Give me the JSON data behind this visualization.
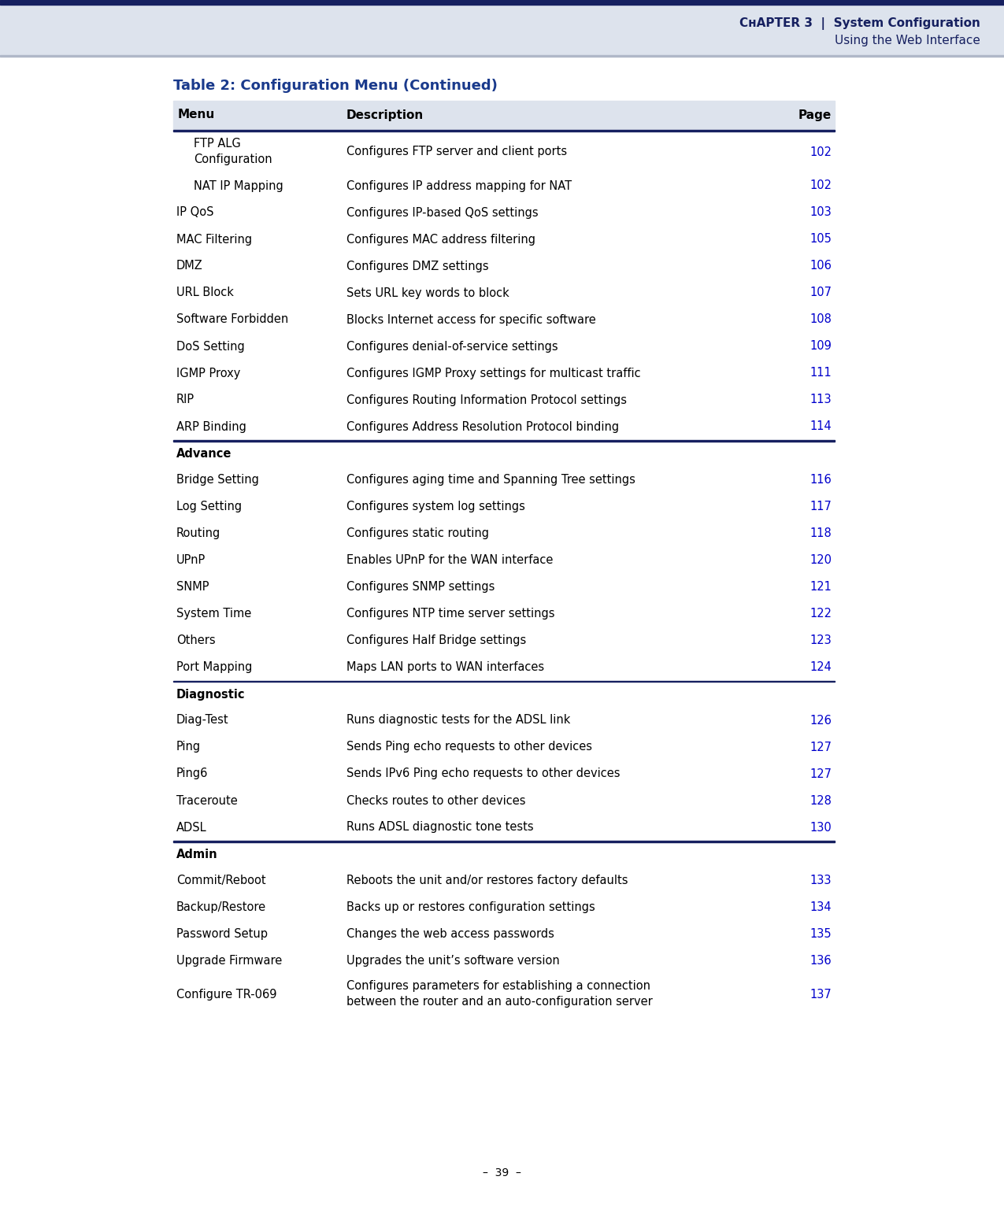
{
  "page_bg": "#ffffff",
  "header_bg": "#dde3ed",
  "header_top_bar_color": "#162060",
  "header_text_color": "#162060",
  "table_title": "Table 2: Configuration Menu (Continued)",
  "table_title_color": "#1a3a8c",
  "col_header_bg": "#dde3ed",
  "col_header_color": "#000000",
  "separator_color": "#162060",
  "page_number": "–  39  –",
  "page_num_color": "#000000",
  "link_color": "#0000cc",
  "rows": [
    {
      "menu": "FTP ALG\nConfiguration",
      "description": "Configures FTP server and client ports",
      "page": "102",
      "indent": true,
      "bold": false,
      "section_header": false,
      "separator_before": false,
      "two_line": true
    },
    {
      "menu": "NAT IP Mapping",
      "description": "Configures IP address mapping for NAT",
      "page": "102",
      "indent": true,
      "bold": false,
      "section_header": false,
      "separator_before": false,
      "two_line": false
    },
    {
      "menu": "IP QoS",
      "description": "Configures IP-based QoS settings",
      "page": "103",
      "indent": false,
      "bold": false,
      "section_header": false,
      "separator_before": false,
      "two_line": false
    },
    {
      "menu": "MAC Filtering",
      "description": "Configures MAC address filtering",
      "page": "105",
      "indent": false,
      "bold": false,
      "section_header": false,
      "separator_before": false,
      "two_line": false
    },
    {
      "menu": "DMZ",
      "description": "Configures DMZ settings",
      "page": "106",
      "indent": false,
      "bold": false,
      "section_header": false,
      "separator_before": false,
      "two_line": false
    },
    {
      "menu": "URL Block",
      "description": "Sets URL key words to block",
      "page": "107",
      "indent": false,
      "bold": false,
      "section_header": false,
      "separator_before": false,
      "two_line": false
    },
    {
      "menu": "Software Forbidden",
      "description": "Blocks Internet access for specific software",
      "page": "108",
      "indent": false,
      "bold": false,
      "section_header": false,
      "separator_before": false,
      "two_line": false
    },
    {
      "menu": "DoS Setting",
      "description": "Configures denial-of-service settings",
      "page": "109",
      "indent": false,
      "bold": false,
      "section_header": false,
      "separator_before": false,
      "two_line": false
    },
    {
      "menu": "IGMP Proxy",
      "description": "Configures IGMP Proxy settings for multicast traffic",
      "page": "111",
      "indent": false,
      "bold": false,
      "section_header": false,
      "separator_before": false,
      "two_line": false
    },
    {
      "menu": "RIP",
      "description": "Configures Routing Information Protocol settings",
      "page": "113",
      "indent": false,
      "bold": false,
      "section_header": false,
      "separator_before": false,
      "two_line": false
    },
    {
      "menu": "ARP Binding",
      "description": "Configures Address Resolution Protocol binding",
      "page": "114",
      "indent": false,
      "bold": false,
      "section_header": false,
      "separator_before": false,
      "two_line": false
    },
    {
      "menu": "Advance",
      "description": "",
      "page": "",
      "indent": false,
      "bold": true,
      "section_header": true,
      "separator_before": true,
      "two_line": false
    },
    {
      "menu": "Bridge Setting",
      "description": "Configures aging time and Spanning Tree settings",
      "page": "116",
      "indent": false,
      "bold": false,
      "section_header": false,
      "separator_before": false,
      "two_line": false
    },
    {
      "menu": "Log Setting",
      "description": "Configures system log settings",
      "page": "117",
      "indent": false,
      "bold": false,
      "section_header": false,
      "separator_before": false,
      "two_line": false
    },
    {
      "menu": "Routing",
      "description": "Configures static routing",
      "page": "118",
      "indent": false,
      "bold": false,
      "section_header": false,
      "separator_before": false,
      "two_line": false
    },
    {
      "menu": "UPnP",
      "description": "Enables UPnP for the WAN interface",
      "page": "120",
      "indent": false,
      "bold": false,
      "section_header": false,
      "separator_before": false,
      "two_line": false
    },
    {
      "menu": "SNMP",
      "description": "Configures SNMP settings",
      "page": "121",
      "indent": false,
      "bold": false,
      "section_header": false,
      "separator_before": false,
      "two_line": false
    },
    {
      "menu": "System Time",
      "description": "Configures NTP time server settings",
      "page": "122",
      "indent": false,
      "bold": false,
      "section_header": false,
      "separator_before": false,
      "two_line": false
    },
    {
      "menu": "Others",
      "description": "Configures Half Bridge settings",
      "page": "123",
      "indent": false,
      "bold": false,
      "section_header": false,
      "separator_before": false,
      "two_line": false
    },
    {
      "menu": "Port Mapping",
      "description": "Maps LAN ports to WAN interfaces",
      "page": "124",
      "indent": false,
      "bold": false,
      "section_header": false,
      "separator_before": false,
      "two_line": false
    },
    {
      "menu": "Diagnostic",
      "description": "",
      "page": "",
      "indent": false,
      "bold": true,
      "section_header": true,
      "separator_before": true,
      "two_line": false
    },
    {
      "menu": "Diag-Test",
      "description": "Runs diagnostic tests for the ADSL link",
      "page": "126",
      "indent": false,
      "bold": false,
      "section_header": false,
      "separator_before": false,
      "two_line": false
    },
    {
      "menu": "Ping",
      "description": "Sends Ping echo requests to other devices",
      "page": "127",
      "indent": false,
      "bold": false,
      "section_header": false,
      "separator_before": false,
      "two_line": false
    },
    {
      "menu": "Ping6",
      "description": "Sends IPv6 Ping echo requests to other devices",
      "page": "127",
      "indent": false,
      "bold": false,
      "section_header": false,
      "separator_before": false,
      "two_line": false
    },
    {
      "menu": "Traceroute",
      "description": "Checks routes to other devices",
      "page": "128",
      "indent": false,
      "bold": false,
      "section_header": false,
      "separator_before": false,
      "two_line": false
    },
    {
      "menu": "ADSL",
      "description": "Runs ADSL diagnostic tone tests",
      "page": "130",
      "indent": false,
      "bold": false,
      "section_header": false,
      "separator_before": false,
      "two_line": false
    },
    {
      "menu": "Admin",
      "description": "",
      "page": "",
      "indent": false,
      "bold": true,
      "section_header": true,
      "separator_before": true,
      "two_line": false
    },
    {
      "menu": "Commit/Reboot",
      "description": "Reboots the unit and/or restores factory defaults",
      "page": "133",
      "indent": false,
      "bold": false,
      "section_header": false,
      "separator_before": false,
      "two_line": false
    },
    {
      "menu": "Backup/Restore",
      "description": "Backs up or restores configuration settings",
      "page": "134",
      "indent": false,
      "bold": false,
      "section_header": false,
      "separator_before": false,
      "two_line": false
    },
    {
      "menu": "Password Setup",
      "description": "Changes the web access passwords",
      "page": "135",
      "indent": false,
      "bold": false,
      "section_header": false,
      "separator_before": false,
      "two_line": false
    },
    {
      "menu": "Upgrade Firmware",
      "description": "Upgrades the unit’s software version",
      "page": "136",
      "indent": false,
      "bold": false,
      "section_header": false,
      "separator_before": false,
      "two_line": false
    },
    {
      "menu": "Configure TR-069",
      "description": "Configures parameters for establishing a connection\nbetween the router and an auto-configuration server",
      "page": "137",
      "indent": false,
      "bold": false,
      "section_header": false,
      "separator_before": false,
      "two_line": true
    }
  ]
}
